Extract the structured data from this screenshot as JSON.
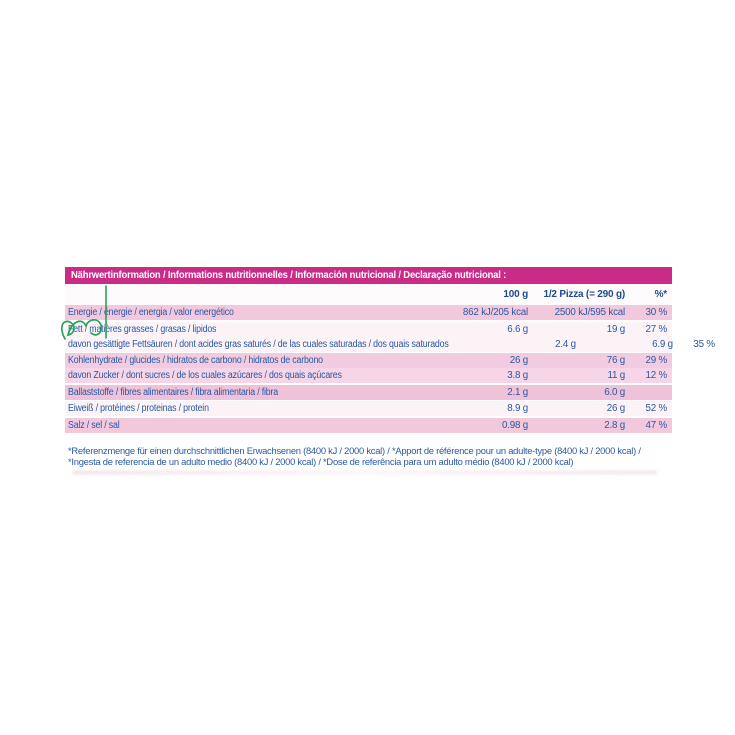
{
  "colors": {
    "header_bg": "#c92b87",
    "text_blue": "#2a58a4",
    "text_blue_dark": "#1e4a8f",
    "annotation_green": "#23a35b",
    "band_pink": "#f2c8dd",
    "band_light": "#fbf3f6"
  },
  "table": {
    "title": "Nährwertinformation / Informations nutritionnelles / Información nutricional / Declaração nutricional :",
    "columns": [
      "100 g",
      "1/2 Pizza (= 290 g)",
      "%*"
    ],
    "rows": [
      {
        "label": "Energie / énergie / energia / valor energético",
        "per100": "862 kJ/205 kcal",
        "portion": "2500 kJ/595 kcal",
        "pct": "30 %",
        "band": "pink1",
        "sep": false
      },
      {
        "label": "Fett / matières grasses / grasas / lipidos",
        "per100": "6.6 g",
        "portion": "19 g",
        "pct": "27 %",
        "band": "light",
        "sep": true
      },
      {
        "label": "davon gesättigte Fettsäuren / dont acides gras saturés / de las cuales saturadas / dos quais saturados",
        "per100": "2.4 g",
        "portion": "6.9 g",
        "pct": "35 %",
        "band": "light",
        "sep": false
      },
      {
        "label": "Kohlenhydrate / glucides / hidratos de carbono / hidratos de carbono",
        "per100": "26 g",
        "portion": "76 g",
        "pct": "29 %",
        "band": "pink2",
        "sep": true
      },
      {
        "label": "davon Zucker / dont sucres / de los cuales azúcares / dos quais açúcares",
        "per100": "3.8 g",
        "portion": "11 g",
        "pct": "12 %",
        "band": "pink3",
        "sep": false
      },
      {
        "label": "Ballaststoffe / fibres alimentaires / fibra alimentaria / fibra",
        "per100": "2.1 g",
        "portion": "6.0 g",
        "pct": "",
        "band": "pink4",
        "sep": true
      },
      {
        "label": "Eiweiß / protéines / proteinas / protein",
        "per100": "8.9 g",
        "portion": "26 g",
        "pct": "52 %",
        "band": "light",
        "sep": true
      },
      {
        "label": "Salz / sel / sal",
        "per100": "0.98 g",
        "portion": "2.8 g",
        "pct": "47 %",
        "band": "pink1",
        "sep": true
      }
    ],
    "footnote_lines": [
      "*Referenzmenge für einen durchschnittlichen Erwachsenen (8400 kJ / 2000 kcal) / *Apport de référence pour un adulte-type (8400 kJ / 2000 kcal) /",
      "*Ingesta de referencia de un adulto medio (8400 kJ / 2000 kcal) / *Dose de referência para um adulto médio (8400 kJ / 2000 kcal)"
    ]
  },
  "annotation": {
    "description": "green pen scribble over Fett label with vertical line"
  }
}
